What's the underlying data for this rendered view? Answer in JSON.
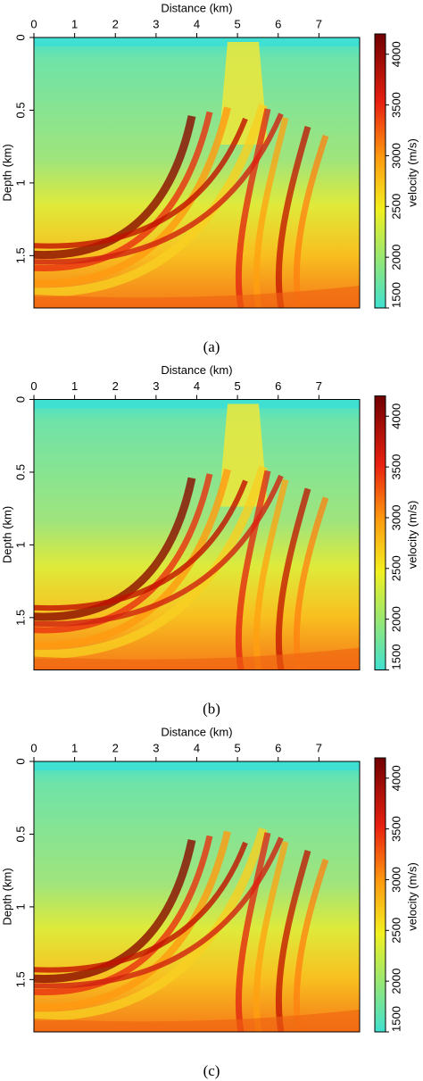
{
  "chart_data": [
    {
      "type": "heatmap",
      "caption": "(a)",
      "x_label": "Distance (km)",
      "y_label": "Depth (km)",
      "colorbar_label": "velocity (m/s)",
      "xlim": [
        0,
        8
      ],
      "xticks": [
        0,
        1,
        2,
        3,
        4,
        5,
        6,
        7
      ],
      "ylim": [
        0,
        1.86
      ],
      "yticks": [
        0,
        0.5,
        1,
        1.5
      ],
      "clim": [
        1500,
        4200
      ],
      "cticks": [
        1500,
        2000,
        2500,
        3000,
        3500,
        4000
      ]
    },
    {
      "type": "heatmap",
      "caption": "(b)",
      "x_label": "Distance (km)",
      "y_label": "Depth (km)",
      "colorbar_label": "velocity (m/s)",
      "xlim": [
        0,
        8
      ],
      "xticks": [
        0,
        1,
        2,
        3,
        4,
        5,
        6,
        7
      ],
      "ylim": [
        0,
        1.86
      ],
      "yticks": [
        0,
        0.5,
        1,
        1.5
      ],
      "clim": [
        1500,
        4200
      ],
      "cticks": [
        1500,
        2000,
        2500,
        3000,
        3500,
        4000
      ]
    },
    {
      "type": "heatmap",
      "caption": "(c)",
      "x_label": "Distance (km)",
      "y_label": "Depth (km)",
      "colorbar_label": "velocity (m/s)",
      "xlim": [
        0,
        8
      ],
      "xticks": [
        0,
        1,
        2,
        3,
        4,
        5,
        6,
        7
      ],
      "ylim": [
        0,
        1.86
      ],
      "yticks": [
        0,
        0.5,
        1,
        1.5
      ],
      "clim": [
        1500,
        4200
      ],
      "cticks": [
        1500,
        2000,
        2500,
        3000,
        3500,
        4000
      ]
    }
  ]
}
